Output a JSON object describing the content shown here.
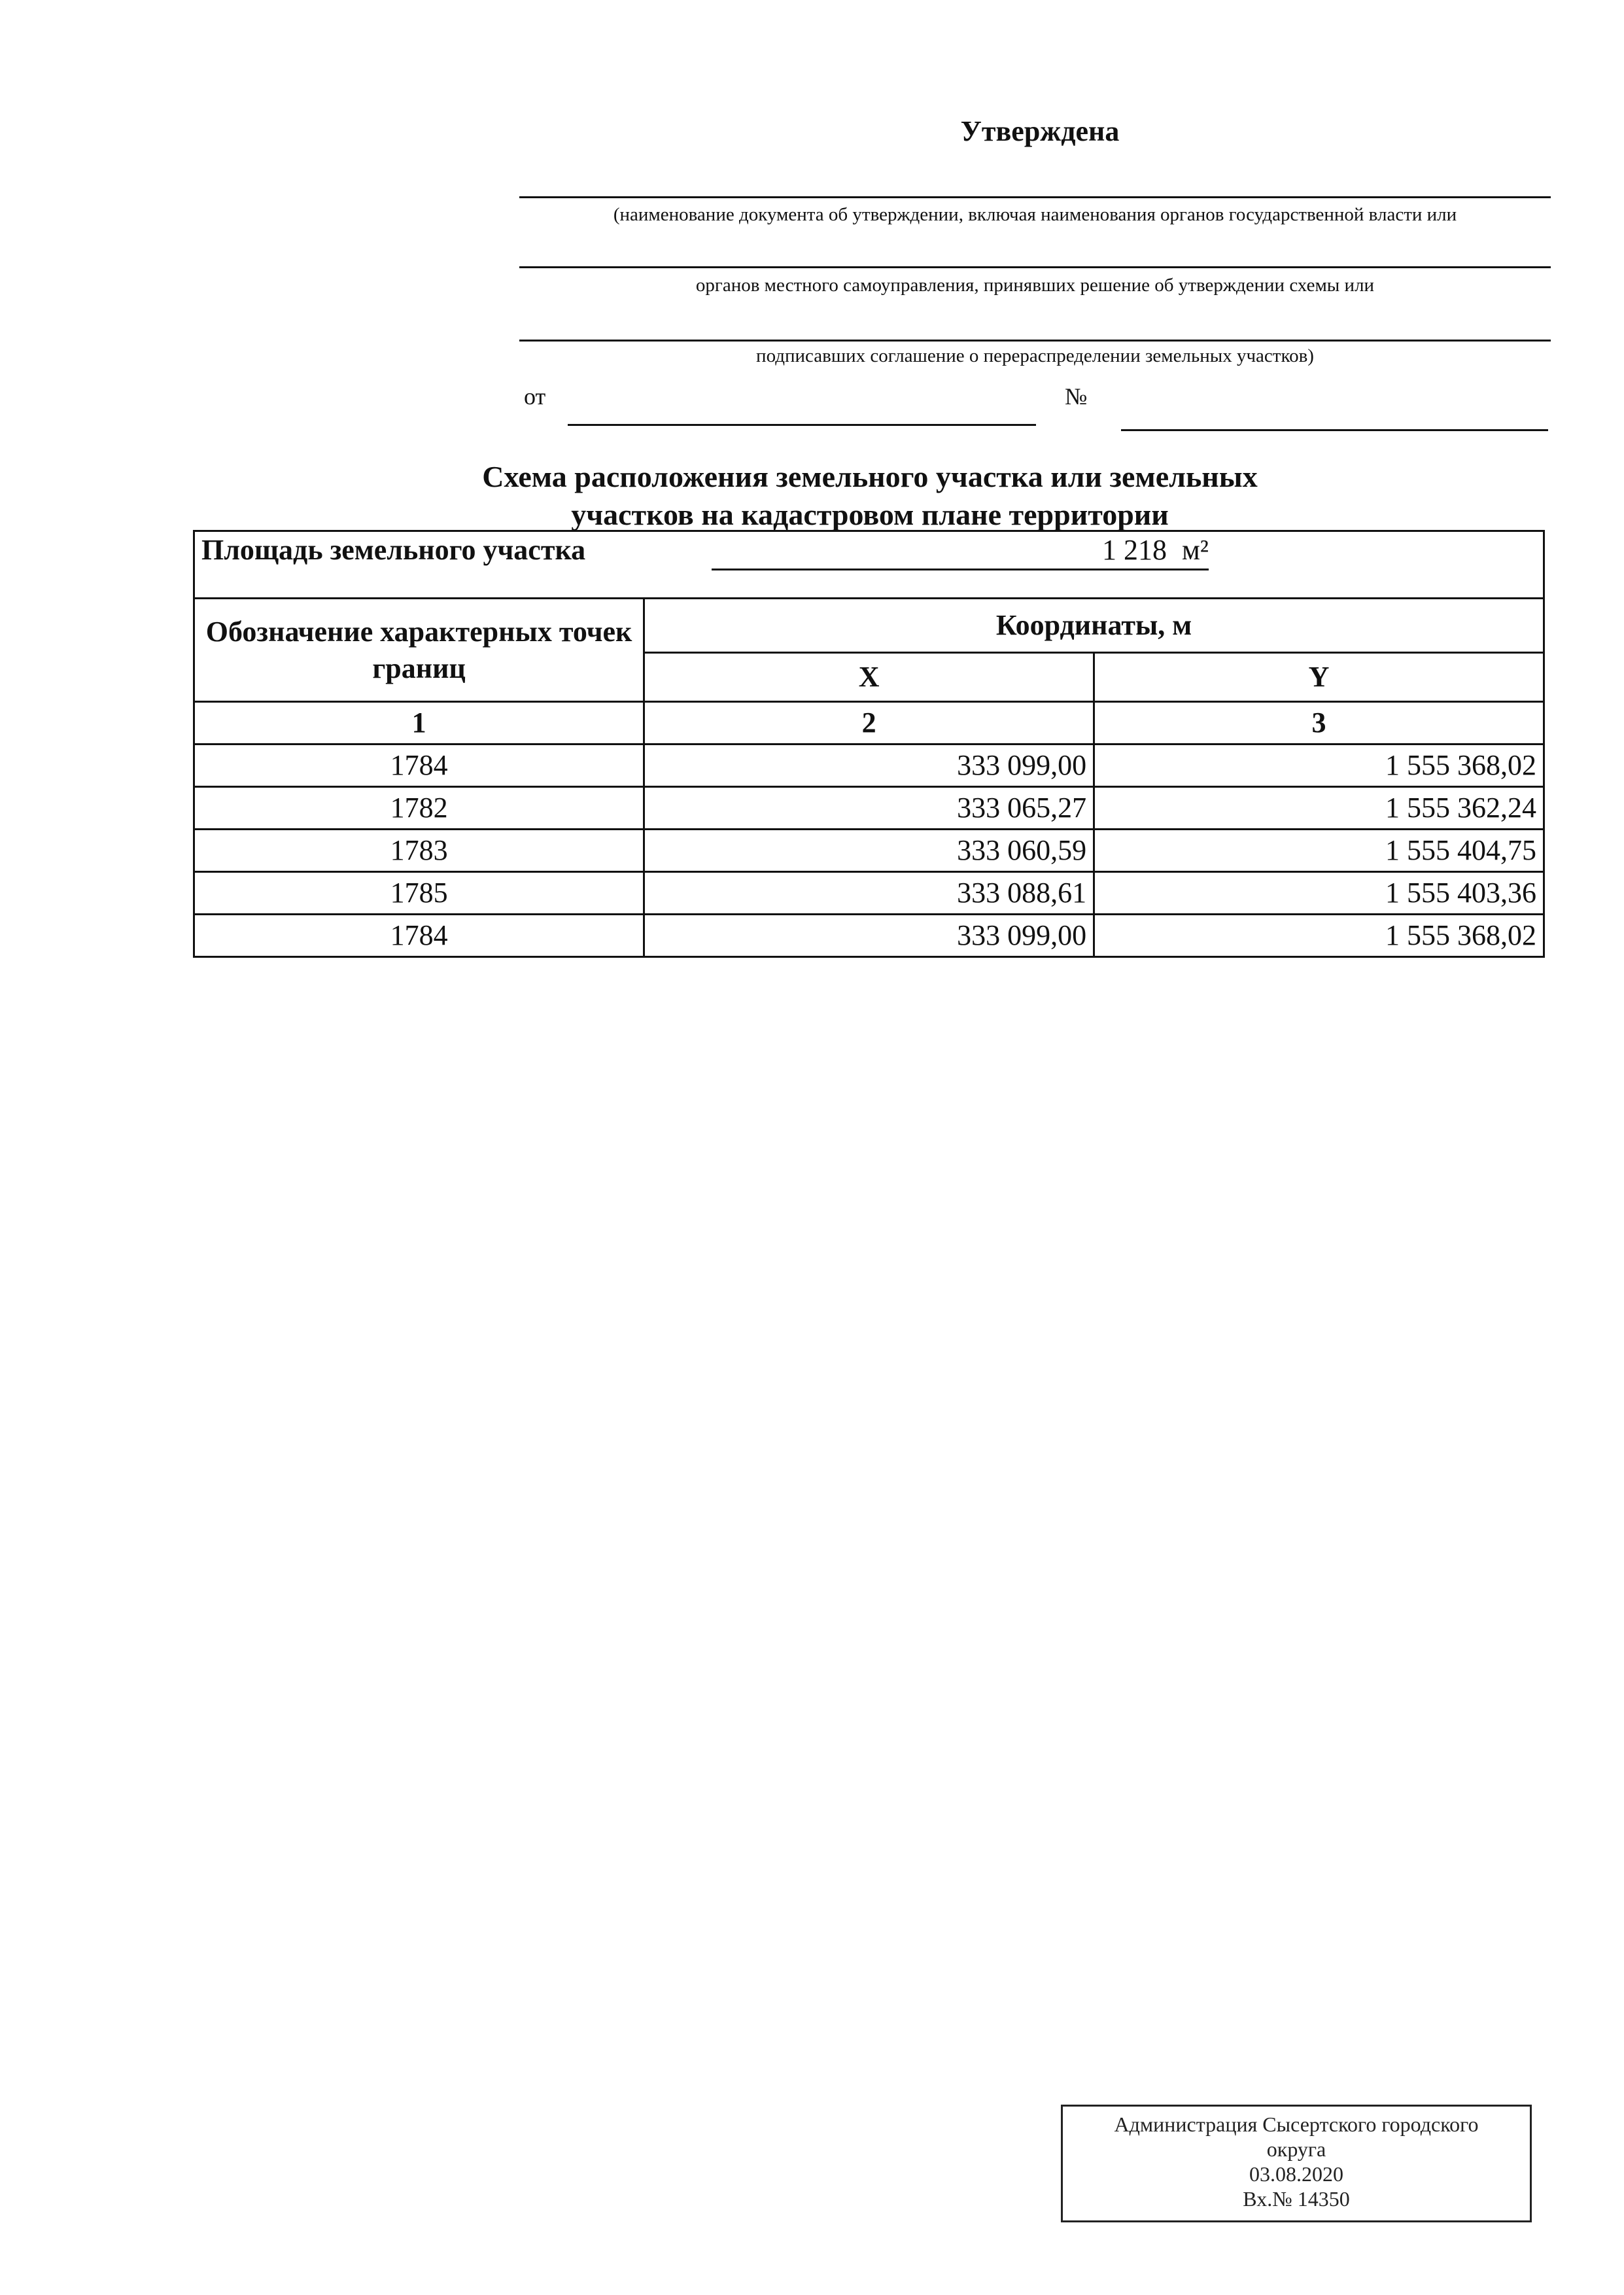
{
  "header": {
    "approved": "Утверждена",
    "caption_1": "(наименование документа об утверждении, включая наименования органов государственной власти или",
    "caption_2": "органов местного самоуправления, принявших решение об утверждении схемы или",
    "caption_3": "подписавших соглашение о перераспределении земельных участков)",
    "from_label": "от",
    "number_label": "№"
  },
  "heading": {
    "line1": "Схема расположения земельного участка или земельных",
    "line2": "участков на кадастровом плане территории"
  },
  "table": {
    "area_label": "Площадь земельного участка",
    "area_value": "1 218",
    "area_unit": "м²",
    "col_points": "Обозначение характерных точек границ",
    "col_coords": "Координаты, м",
    "col_x": "X",
    "col_y": "Y",
    "num_1": "1",
    "num_2": "2",
    "num_3": "3",
    "rows": [
      {
        "point": "1784",
        "x": "333 099,00",
        "y": "1 555 368,02"
      },
      {
        "point": "1782",
        "x": "333 065,27",
        "y": "1 555 362,24"
      },
      {
        "point": "1783",
        "x": "333 060,59",
        "y": "1 555 404,75"
      },
      {
        "point": "1785",
        "x": "333 088,61",
        "y": "1 555 403,36"
      },
      {
        "point": "1784",
        "x": "333 099,00",
        "y": "1 555 368,02"
      }
    ]
  },
  "stamp": {
    "line1": "Администрация Сысертского городского",
    "line2": "округа",
    "date": "03.08.2020",
    "reg": "Вх.№ 14350"
  }
}
